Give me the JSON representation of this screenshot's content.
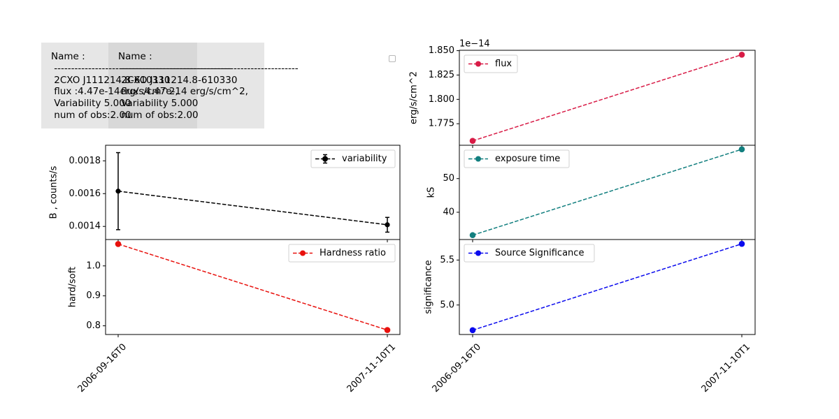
{
  "info_panels": [
    {
      "name_label": "Name :",
      "separator": "----------------------------------------------------",
      "source": "2CXO J111214.8-610330",
      "flux": "flux :4.47e-14erg/s/cm^2,",
      "variability": "Variability 5.000",
      "num_obs": "num of obs:2.00"
    },
    {
      "name_label": "Name :",
      "separator": "----------------------------------------------------",
      "source": "2CXO J111214.8-610330",
      "flux": "flux :4.47e-14 erg/s/cm^2,",
      "variability": "Variability 5.000",
      "num_obs": "num of obs:2.00"
    }
  ],
  "colors": {
    "variability": "#000000",
    "hardness": "#e8110d",
    "flux": "#d81b46",
    "exposure": "#127f7f",
    "significance": "#0a0aee"
  },
  "chart_data": [
    {
      "id": "variability",
      "type": "line",
      "x": [
        "2006-09-16T0",
        "2007-11-10T1"
      ],
      "series": [
        {
          "name": "variability",
          "values": [
            0.001615,
            0.00141
          ],
          "yerr": [
            0.000235,
            4.5e-05
          ]
        }
      ],
      "ylabel": "B , counts/s",
      "ylim": [
        0.00132,
        0.001895
      ],
      "yticks": [
        0.0014,
        0.0016,
        0.0018
      ],
      "ytick_labels": [
        "0.0014",
        "0.0016",
        "0.0018"
      ],
      "legend": "upper right"
    },
    {
      "id": "hardness",
      "type": "line",
      "x": [
        "2006-09-16T0",
        "2007-11-10T1"
      ],
      "series": [
        {
          "name": "Hardness ratio",
          "values": [
            1.073,
            0.786
          ]
        }
      ],
      "ylabel": "hard/soft",
      "ylim": [
        0.771,
        1.088
      ],
      "yticks": [
        0.8,
        0.9,
        1.0
      ],
      "ytick_labels": [
        "0.8",
        "0.9",
        "1.0"
      ],
      "xtick_labels": [
        "2006-09-16T0",
        "2007-11-10T1"
      ],
      "legend": "upper right"
    },
    {
      "id": "flux",
      "type": "line",
      "x": [
        "2006-09-16T0",
        "2007-11-10T1"
      ],
      "series": [
        {
          "name": "flux",
          "values": [
            1.7574,
            1.8459
          ]
        }
      ],
      "ylabel": "erg/s/cm^2",
      "offset_label": "1e−14",
      "ylim": [
        1.7529,
        1.8504
      ],
      "yticks": [
        1.775,
        1.8,
        1.825,
        1.85
      ],
      "ytick_labels": [
        "1.775",
        "1.800",
        "1.825",
        "1.850"
      ],
      "legend": "upper left"
    },
    {
      "id": "exposure",
      "type": "line",
      "x": [
        "2006-09-16T0",
        "2007-11-10T1"
      ],
      "series": [
        {
          "name": "exposure time",
          "values": [
            33.2,
            58.7
          ]
        }
      ],
      "ylabel": "kS",
      "ylim": [
        31.9,
        59.9
      ],
      "yticks": [
        40,
        50
      ],
      "ytick_labels": [
        "40",
        "50"
      ],
      "legend": "upper left"
    },
    {
      "id": "significance",
      "type": "line",
      "x": [
        "2006-09-16T0",
        "2007-11-10T1"
      ],
      "series": [
        {
          "name": "Source Significance",
          "values": [
            4.72,
            5.68
          ]
        }
      ],
      "ylabel": "significance",
      "ylim": [
        4.672,
        5.728
      ],
      "yticks": [
        5.0,
        5.5
      ],
      "ytick_labels": [
        "5.0",
        "5.5"
      ],
      "xtick_labels": [
        "2006-09-16T0",
        "2007-11-10T1"
      ],
      "legend": "upper left"
    }
  ]
}
